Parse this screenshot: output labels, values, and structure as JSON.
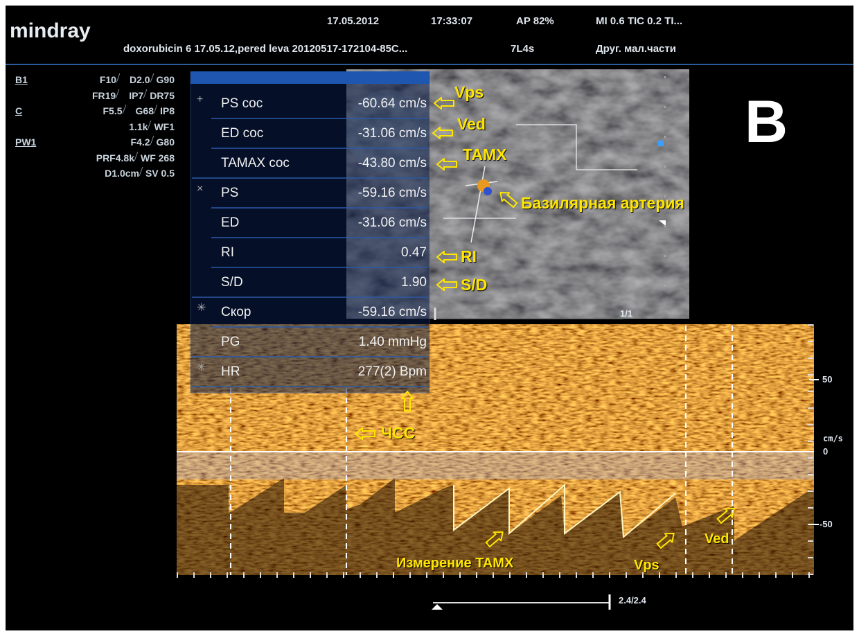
{
  "header": {
    "brand": "mindray",
    "date": "17.05.2012",
    "time": "17:33:07",
    "ap": "AP 82%",
    "indices": "MI 0.6 TIC 0.2 TI...",
    "file": "doxorubicin 6 17.05.12,pered leva 20120517-172104-85C...",
    "probe": "7L4s",
    "preset": "Друг. мал.части"
  },
  "params": [
    [
      "B1",
      "F10",
      "D2.0",
      "G90"
    ],
    [
      "FR19",
      "IP7",
      "DR75"
    ],
    [
      "C",
      "F5.5",
      "G68",
      "IP8"
    ],
    [
      "1.1k",
      "WF1"
    ],
    [
      "PW1",
      "F4.2",
      "G80"
    ],
    [
      "PRF4.8k",
      "WF 268"
    ],
    [
      "D1.0cm",
      "SV 0.5"
    ]
  ],
  "measurements": [
    {
      "symbol": "+",
      "rows": [
        {
          "label": "PS coc",
          "value": "-60.64 cm/s"
        },
        {
          "label": "ED coc",
          "value": "-31.06 cm/s"
        },
        {
          "label": "TAMAX coc",
          "value": "-43.80 cm/s"
        }
      ]
    },
    {
      "symbol": "×",
      "rows": [
        {
          "label": "PS",
          "value": "-59.16 cm/s"
        },
        {
          "label": "ED",
          "value": "-31.06 cm/s"
        },
        {
          "label": "RI",
          "value": "0.47"
        },
        {
          "label": "S/D",
          "value": "1.90"
        }
      ]
    },
    {
      "symbol": "✳",
      "rows": [
        {
          "label": "Скор",
          "value": "-59.16 cm/s"
        },
        {
          "label": "PG",
          "value": "1.40 mmHg"
        }
      ]
    },
    {
      "symbol": "✳",
      "rows": [
        {
          "label": "HR",
          "value": "277(2) Bpm"
        }
      ]
    }
  ],
  "annotations": {
    "vps": "Vps",
    "ved": "Ved",
    "tamx": "TAMX",
    "artery": "Базилярная артерия",
    "ri": "RI",
    "sd": "S/D",
    "hr": "ЧСС",
    "tamx_measure": "Измерение TAMX",
    "vps_spectrum": "Vps",
    "ved_spectrum": "Ved",
    "panel": "B"
  },
  "scale": {
    "frame": "1/1",
    "tick_50": "50",
    "unit": "cm/s",
    "tick_0": "0",
    "tick_minus_50": "-50",
    "sweep": "2.4/2.4"
  }
}
